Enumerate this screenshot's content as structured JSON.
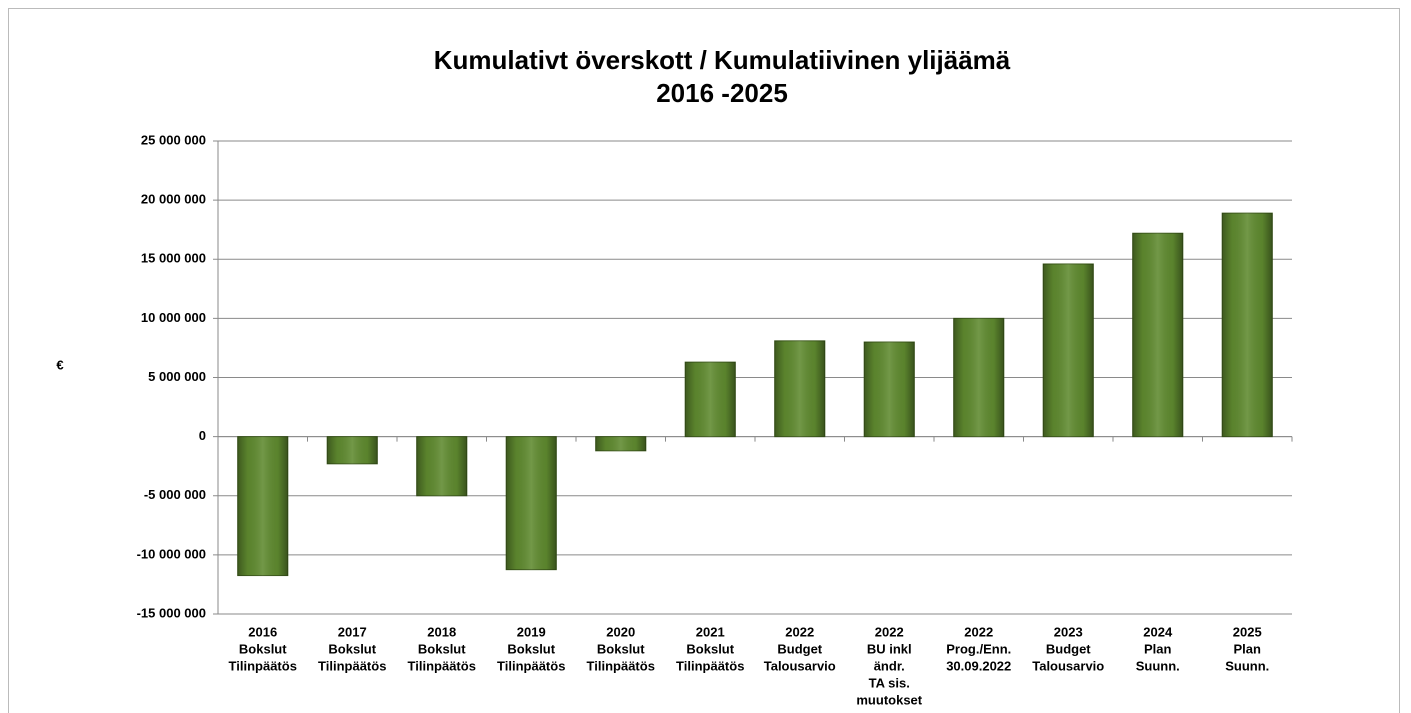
{
  "chart_data": {
    "type": "bar",
    "title": "Kumulativt överskott / Kumulatiivinen ylijäämä",
    "subtitle": "2016 -2025",
    "y_label": "€",
    "categories": [
      [
        "2016",
        "Bokslut",
        "Tilinpäätös"
      ],
      [
        "2017",
        "Bokslut",
        "Tilinpäätös"
      ],
      [
        "2018",
        "Bokslut",
        "Tilinpäätös"
      ],
      [
        "2019",
        "Bokslut",
        "Tilinpäätös"
      ],
      [
        "2020",
        "Bokslut",
        "Tilinpäätös"
      ],
      [
        "2021",
        "Bokslut",
        "Tilinpäätös"
      ],
      [
        "2022",
        "Budget",
        "Talousarvio"
      ],
      [
        "2022",
        "BU inkl",
        "ändr.",
        "TA sis.",
        "muutokset"
      ],
      [
        "2022",
        "Prog./Enn.",
        "30.09.2022"
      ],
      [
        "2023",
        "Budget",
        "Talousarvio"
      ],
      [
        "2024",
        "Plan",
        "Suunn."
      ],
      [
        "2025",
        "Plan",
        "Suunn."
      ]
    ],
    "values": [
      -11750000,
      -2300000,
      -5000000,
      -11250000,
      -1200000,
      6300000,
      8100000,
      8000000,
      10000000,
      14600000,
      17200000,
      18900000
    ],
    "color": "#5f8a2f",
    "ylim": [
      -15000000,
      25000000
    ],
    "yticks": [
      {
        "value": -15000000,
        "label": "-15 000 000"
      },
      {
        "value": -10000000,
        "label": "-10 000 000"
      },
      {
        "value": -5000000,
        "label": "-5 000 000"
      },
      0,
      {
        "value": 5000000,
        "label": "5 000 000"
      },
      {
        "value": 10000000,
        "label": "10 000 000"
      },
      {
        "value": 15000000,
        "label": "15 000 000"
      },
      {
        "value": 20000000,
        "label": "20 000 000"
      },
      {
        "value": 25000000,
        "label": "25 000 000"
      }
    ],
    "grid": true
  }
}
